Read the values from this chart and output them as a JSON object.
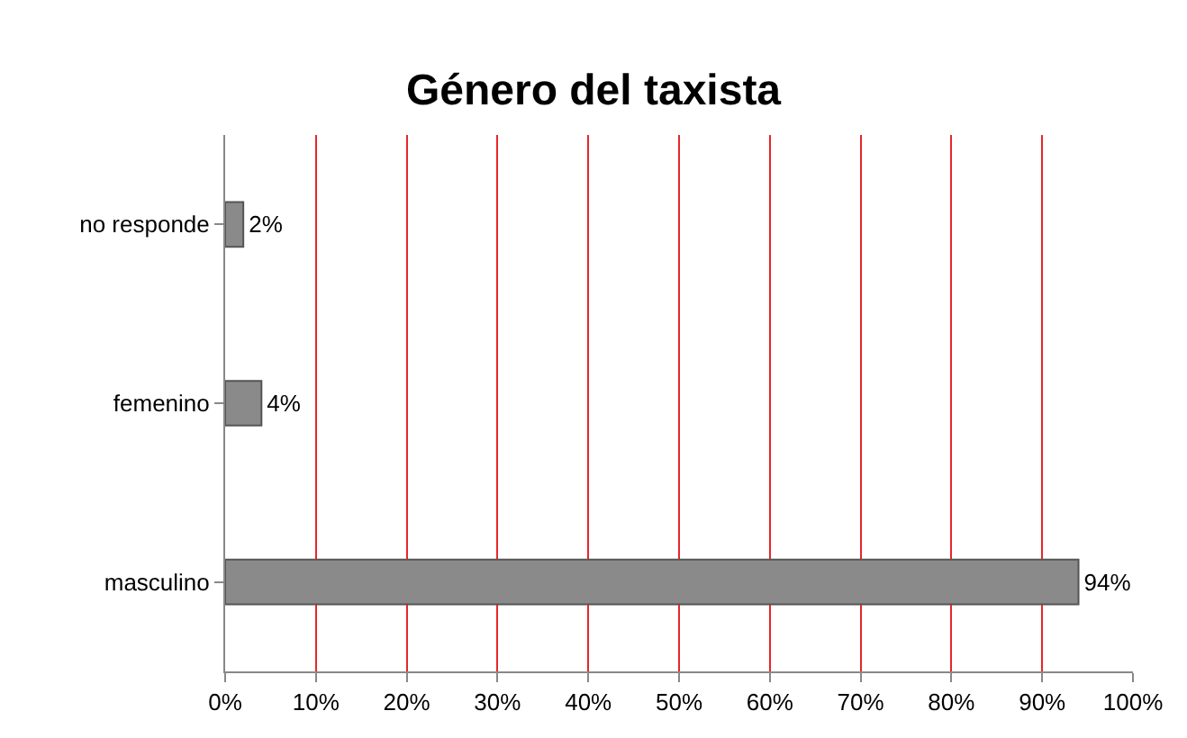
{
  "chart_data": {
    "type": "bar",
    "title": "Género del taxista",
    "orientation": "horizontal",
    "categories": [
      "no responde",
      "femenino",
      "masculino"
    ],
    "values": [
      2,
      4,
      94
    ],
    "color": "#8a8a8a",
    "value_labels": [
      "2%",
      "4%",
      "94%"
    ],
    "xlim": [
      0,
      100
    ],
    "xticks": [
      {
        "value": 0,
        "label": "0%"
      },
      {
        "value": 10,
        "label": "10%"
      },
      {
        "value": 20,
        "label": "20%"
      },
      {
        "value": 30,
        "label": "30%"
      },
      {
        "value": 40,
        "label": "40%"
      },
      {
        "value": 50,
        "label": "50%"
      },
      {
        "value": 60,
        "label": "60%"
      },
      {
        "value": 70,
        "label": "70%"
      },
      {
        "value": 80,
        "label": "80%"
      },
      {
        "value": 90,
        "label": "90%"
      },
      {
        "value": 100,
        "label": "100%"
      }
    ],
    "grid": "x"
  }
}
